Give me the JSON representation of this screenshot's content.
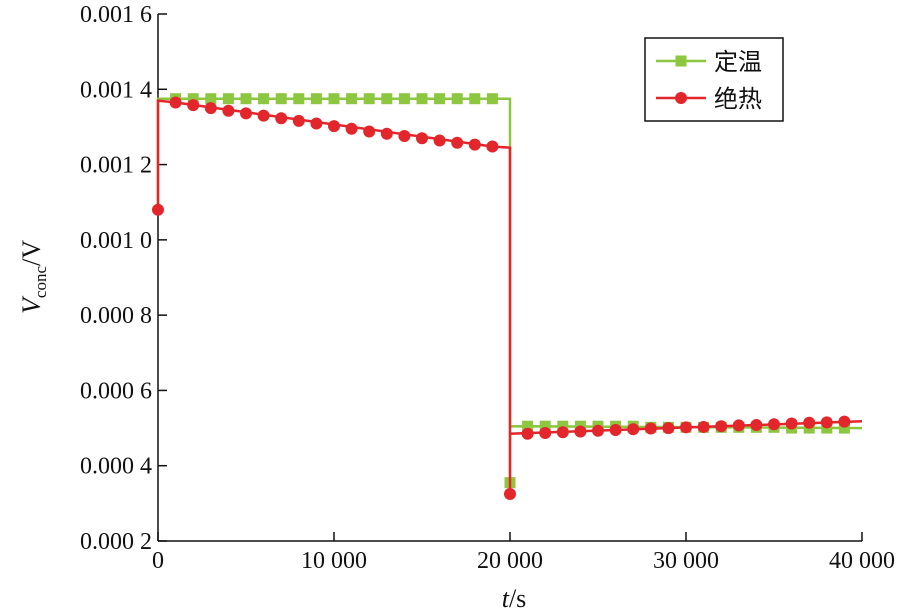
{
  "chart_data": {
    "type": "line",
    "xlabel": {
      "main": "t",
      "unit": "/s"
    },
    "ylabel": {
      "main": "V",
      "sub": "conc",
      "unit": "/V"
    },
    "xlim": [
      0,
      40000
    ],
    "ylim": [
      0.0002,
      0.0016
    ],
    "xticks": [
      0,
      10000,
      20000,
      30000,
      40000
    ],
    "xtick_labels": [
      "0",
      "10 000",
      "20 000",
      "30 000",
      "40 000"
    ],
    "yticks": [
      0.0002,
      0.0004,
      0.0006,
      0.0008,
      0.001,
      0.0012,
      0.0014,
      0.0016
    ],
    "ytick_labels": [
      "0.000 2",
      "0.000 4",
      "0.000 6",
      "0.000 8",
      "0.001 0",
      "0.001 2",
      "0.001 4",
      "0.001 6"
    ],
    "grid": false,
    "legend_position": "top-right",
    "series": [
      {
        "name": "定温",
        "color": "#8dc63f",
        "marker": "square",
        "line": [
          [
            0,
            0.00108
          ],
          [
            0,
            0.001375
          ],
          [
            20000,
            0.001375
          ],
          [
            20000,
            0.000355
          ],
          [
            20000,
            0.000505
          ],
          [
            40000,
            0.0005
          ]
        ],
        "points": [
          [
            1000,
            0.001375
          ],
          [
            2000,
            0.001375
          ],
          [
            3000,
            0.001375
          ],
          [
            4000,
            0.001375
          ],
          [
            5000,
            0.001375
          ],
          [
            6000,
            0.001375
          ],
          [
            7000,
            0.001375
          ],
          [
            8000,
            0.001375
          ],
          [
            9000,
            0.001375
          ],
          [
            10000,
            0.001375
          ],
          [
            11000,
            0.001375
          ],
          [
            12000,
            0.001375
          ],
          [
            13000,
            0.001375
          ],
          [
            14000,
            0.001375
          ],
          [
            15000,
            0.001375
          ],
          [
            16000,
            0.001375
          ],
          [
            17000,
            0.001375
          ],
          [
            18000,
            0.001375
          ],
          [
            19000,
            0.001375
          ],
          [
            20000,
            0.000355
          ],
          [
            21000,
            0.000505
          ],
          [
            22000,
            0.000505
          ],
          [
            23000,
            0.000505
          ],
          [
            24000,
            0.000505
          ],
          [
            25000,
            0.000505
          ],
          [
            26000,
            0.000505
          ],
          [
            27000,
            0.000505
          ],
          [
            28000,
            0.000502
          ],
          [
            29000,
            0.000502
          ],
          [
            30000,
            0.000502
          ],
          [
            31000,
            0.000502
          ],
          [
            32000,
            0.000502
          ],
          [
            33000,
            0.000502
          ],
          [
            34000,
            0.000502
          ],
          [
            35000,
            0.000502
          ],
          [
            36000,
            0.0005
          ],
          [
            37000,
            0.0005
          ],
          [
            38000,
            0.0005
          ],
          [
            39000,
            0.0005
          ]
        ]
      },
      {
        "name": "绝热",
        "color": "#e3262c",
        "marker": "circle",
        "line": [
          [
            0,
            0.00108
          ],
          [
            0,
            0.00137
          ],
          [
            1000,
            0.001365
          ],
          [
            19000,
            0.001248
          ],
          [
            20000,
            0.001245
          ],
          [
            20000,
            0.000325
          ],
          [
            20000,
            0.000485
          ],
          [
            40000,
            0.000518
          ]
        ],
        "points": [
          [
            0,
            0.00108
          ],
          [
            1000,
            0.001365
          ],
          [
            2000,
            0.001358
          ],
          [
            3000,
            0.00135
          ],
          [
            4000,
            0.001343
          ],
          [
            5000,
            0.001336
          ],
          [
            6000,
            0.00133
          ],
          [
            7000,
            0.001323
          ],
          [
            8000,
            0.001316
          ],
          [
            9000,
            0.001309
          ],
          [
            10000,
            0.001302
          ],
          [
            11000,
            0.001295
          ],
          [
            12000,
            0.001288
          ],
          [
            13000,
            0.001282
          ],
          [
            14000,
            0.001276
          ],
          [
            15000,
            0.00127
          ],
          [
            16000,
            0.001264
          ],
          [
            17000,
            0.001258
          ],
          [
            18000,
            0.001253
          ],
          [
            19000,
            0.001248
          ],
          [
            20000,
            0.000325
          ],
          [
            21000,
            0.000485
          ],
          [
            22000,
            0.000487
          ],
          [
            23000,
            0.000489
          ],
          [
            24000,
            0.000491
          ],
          [
            25000,
            0.000493
          ],
          [
            26000,
            0.000495
          ],
          [
            27000,
            0.000497
          ],
          [
            28000,
            0.000499
          ],
          [
            29000,
            0.0005
          ],
          [
            30000,
            0.000502
          ],
          [
            31000,
            0.000503
          ],
          [
            32000,
            0.000505
          ],
          [
            33000,
            0.000507
          ],
          [
            34000,
            0.000508
          ],
          [
            35000,
            0.00051
          ],
          [
            36000,
            0.000512
          ],
          [
            37000,
            0.000514
          ],
          [
            38000,
            0.000515
          ],
          [
            39000,
            0.000517
          ]
        ]
      }
    ]
  }
}
